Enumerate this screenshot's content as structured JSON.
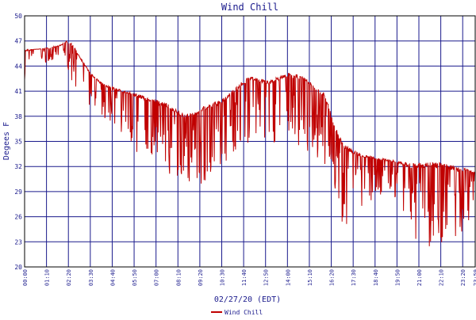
{
  "chart_data": {
    "type": "line",
    "title": "Wind Chill",
    "xlabel": "02/27/20 (EDT)",
    "ylabel": "Degees F",
    "ylim": [
      20,
      50
    ],
    "yticks": [
      20,
      23,
      26,
      29,
      32,
      35,
      38,
      41,
      44,
      47,
      50
    ],
    "x_tick_labels": [
      "00:00",
      "01:10",
      "02:20",
      "03:30",
      "04:40",
      "05:50",
      "07:00",
      "08:10",
      "09:20",
      "10:30",
      "11:40",
      "12:50",
      "14:00",
      "15:10",
      "16:20",
      "17:30",
      "18:40",
      "19:50",
      "21:00",
      "22:10",
      "23:20",
      "23:59"
    ],
    "x_unit": "hours",
    "xlim": [
      0,
      24
    ],
    "grid": true,
    "legend": {
      "placement": "bottom-center",
      "entries": [
        "Wind Chill"
      ]
    },
    "colors": {
      "series": "#c00000",
      "grid": "#1a1a8c",
      "frame": "#000000"
    },
    "series": [
      {
        "name": "Wind Chill",
        "envelope": {
          "x": [
            0.0,
            0.5,
            1.0,
            1.5,
            2.0,
            2.2,
            2.5,
            3.0,
            3.5,
            4.0,
            4.5,
            5.0,
            5.5,
            6.0,
            6.5,
            7.0,
            7.5,
            8.0,
            8.5,
            9.0,
            9.5,
            10.0,
            10.5,
            11.0,
            11.5,
            12.0,
            12.5,
            13.0,
            13.5,
            14.0,
            14.5,
            15.0,
            15.5,
            16.0,
            16.5,
            17.0,
            17.5,
            18.0,
            18.5,
            19.0,
            19.5,
            20.0,
            20.5,
            21.0,
            21.5,
            22.0,
            22.5,
            23.0,
            23.5,
            23.99
          ],
          "upper": [
            46.0,
            46.0,
            46.1,
            46.3,
            46.6,
            47.0,
            46.8,
            45.0,
            43.2,
            42.2,
            41.6,
            41.3,
            41.0,
            40.7,
            40.3,
            40.0,
            39.6,
            39.0,
            38.2,
            38.5,
            39.2,
            39.5,
            40.0,
            41.0,
            42.0,
            42.8,
            42.5,
            42.3,
            42.7,
            43.2,
            43.0,
            42.7,
            41.5,
            40.8,
            37.0,
            34.8,
            34.0,
            33.5,
            33.2,
            33.0,
            32.8,
            32.6,
            32.4,
            32.4,
            32.5,
            32.5,
            32.3,
            32.0,
            31.8,
            31.3
          ],
          "lower": [
            41.0,
            45.8,
            44.5,
            44.2,
            44.5,
            44.8,
            42.0,
            41.0,
            39.0,
            38.0,
            37.5,
            36.5,
            34.0,
            33.0,
            33.5,
            32.5,
            31.0,
            30.0,
            30.5,
            29.5,
            30.0,
            31.0,
            32.0,
            33.0,
            34.0,
            34.5,
            35.0,
            34.0,
            35.0,
            35.5,
            34.0,
            34.0,
            33.0,
            32.0,
            28.0,
            24.0,
            25.5,
            27.0,
            28.0,
            28.5,
            29.0,
            27.0,
            22.5,
            23.0,
            22.0,
            21.8,
            24.0,
            22.5,
            24.5,
            28.0
          ]
        }
      }
    ]
  }
}
